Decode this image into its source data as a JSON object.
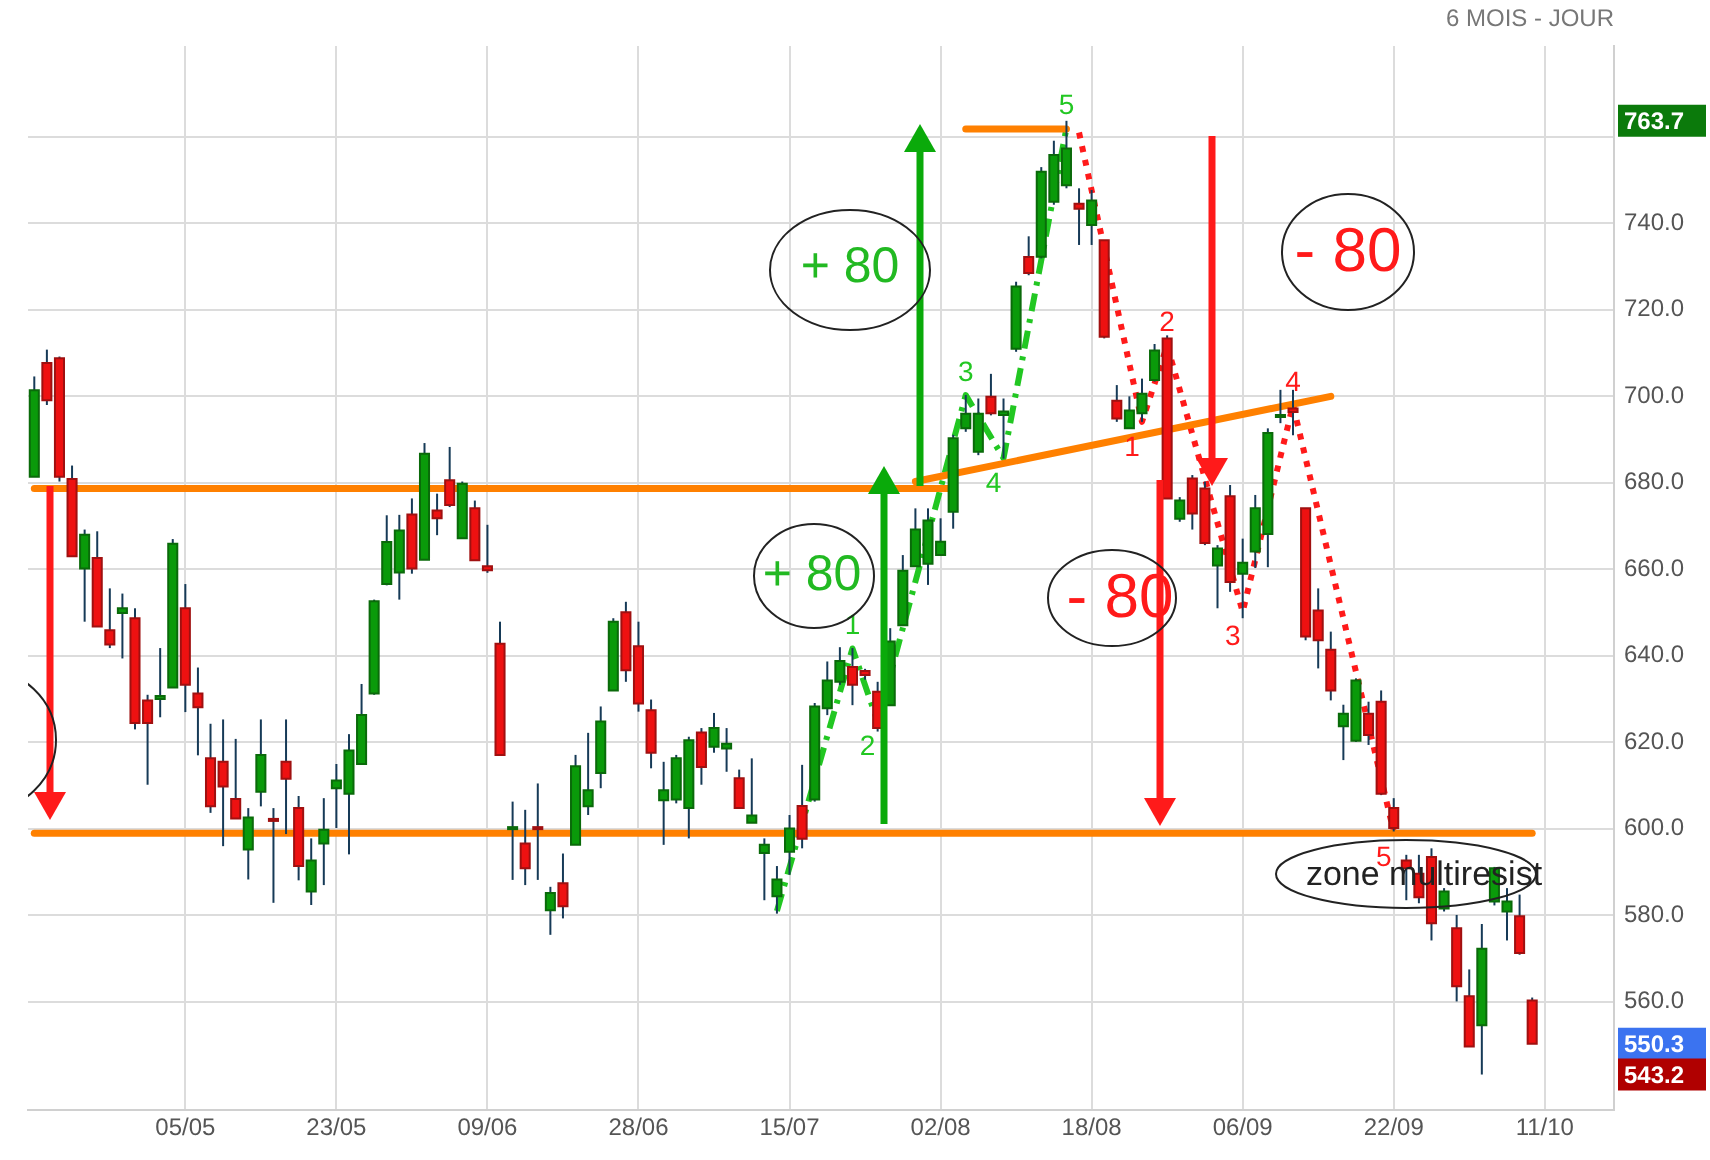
{
  "chart_data": {
    "type": "candlestick",
    "subtitle": "6 MOIS - JOUR",
    "categories": [
      null,
      null,
      null,
      null,
      null,
      null,
      null,
      null,
      null,
      null,
      null,
      null,
      "05/05",
      null,
      null,
      null,
      null,
      null,
      null,
      null,
      null,
      null,
      null,
      null,
      "23/05",
      null,
      null,
      null,
      null,
      null,
      null,
      null,
      null,
      null,
      null,
      null,
      "09/06",
      null,
      null,
      null,
      null,
      null,
      null,
      null,
      null,
      null,
      null,
      null,
      "28/06",
      null,
      null,
      null,
      null,
      null,
      null,
      null,
      null,
      null,
      null,
      null,
      "15/07",
      null,
      null,
      null,
      null,
      null,
      null,
      null,
      null,
      null,
      null,
      null,
      "02/08",
      null,
      null,
      null,
      null,
      null,
      null,
      null,
      null,
      null,
      null,
      null,
      "18/08",
      null,
      null,
      null,
      null,
      null,
      null,
      null,
      null,
      null,
      null,
      null,
      "06/09",
      null,
      null,
      null,
      null,
      null,
      null,
      null,
      null,
      null,
      null,
      null,
      "22/09",
      null,
      null,
      null,
      null,
      null,
      null,
      null,
      null,
      null,
      null,
      null,
      "11/10",
      null,
      null,
      null,
      null,
      null
    ],
    "ohlc": [
      [
        681.4,
        704.6,
        681.4,
        701.4
      ],
      [
        707.7,
        710.8,
        698,
        699.1
      ],
      [
        708.8,
        709.2,
        680.3,
        681.4
      ],
      [
        680.9,
        684,
        663,
        663
      ],
      [
        660.2,
        669.2,
        647.9,
        668
      ],
      [
        662.6,
        668.8,
        646.8,
        646.8
      ],
      [
        645.9,
        655.6,
        641.8,
        642.6
      ],
      [
        649.9,
        654.4,
        639.4,
        651
      ],
      [
        648.7,
        651,
        623,
        624.5
      ],
      [
        629.7,
        631,
        610.2,
        624.5
      ],
      [
        630,
        641.8,
        625.8,
        630.7
      ],
      [
        632.7,
        667,
        632.7,
        665.9
      ],
      [
        651,
        656.6,
        627,
        633.3
      ],
      [
        631.3,
        637.3,
        617,
        628.1
      ],
      [
        616.3,
        624.3,
        603.7,
        605.2
      ],
      [
        615.5,
        625.3,
        596,
        609.8
      ],
      [
        606.9,
        620.8,
        602.4,
        602.4
      ],
      [
        595.2,
        604.8,
        588.3,
        602.6
      ],
      [
        608.6,
        625.3,
        605.2,
        617.1
      ],
      [
        602.3,
        604.8,
        582.9,
        601.9
      ],
      [
        615.5,
        625.3,
        598.8,
        611.6
      ],
      [
        604.8,
        607.6,
        588.1,
        591.4
      ],
      [
        585.5,
        597.8,
        582.4,
        592.7
      ],
      [
        596.6,
        607.1,
        587,
        599.8
      ],
      [
        609.4,
        615,
        600.2,
        611.2
      ],
      [
        608.1,
        621.9,
        594.1,
        618.1
      ],
      [
        615,
        633.5,
        615,
        626.3
      ],
      [
        631.3,
        653,
        631,
        652.6
      ],
      [
        656.6,
        672.5,
        656.3,
        666.3
      ],
      [
        659.3,
        672.6,
        653,
        669
      ],
      [
        672.7,
        676.4,
        659,
        660.2
      ],
      [
        662.2,
        689.2,
        662.2,
        686.7
      ],
      [
        673.6,
        677.5,
        667.9,
        671.8
      ],
      [
        680.6,
        688.3,
        674.4,
        674.9
      ],
      [
        667.2,
        680.3,
        667.2,
        679.8
      ],
      [
        674.1,
        675.9,
        662.1,
        662.1
      ],
      [
        660.7,
        670.3,
        659.2,
        659.8
      ],
      [
        642.8,
        647.9,
        617.1,
        617.1
      ],
      [
        600.2,
        606.3,
        588.2,
        600.4
      ],
      [
        596.6,
        604.4,
        587,
        590.9
      ],
      [
        600.4,
        610.5,
        588.2,
        600.2
      ],
      [
        581.2,
        586.6,
        575.5,
        585.2
      ],
      [
        587.4,
        594.3,
        579.3,
        582.1
      ],
      [
        596.3,
        617.1,
        596.3,
        614.5
      ],
      [
        605.2,
        622.2,
        603.2,
        608.9
      ],
      [
        612.9,
        628.3,
        609.4,
        624.8
      ],
      [
        632,
        648.7,
        632,
        647.9
      ],
      [
        650.1,
        652.5,
        634,
        636.7
      ],
      [
        642.2,
        647.9,
        627.1,
        629
      ],
      [
        627.4,
        629.9,
        614,
        617.6
      ],
      [
        606.6,
        615.5,
        596.3,
        608.9
      ],
      [
        606.8,
        617.1,
        605.9,
        616.3
      ],
      [
        604.8,
        621.3,
        597.8,
        620.5
      ],
      [
        622.3,
        623.3,
        610.2,
        614.3
      ],
      [
        619,
        626.8,
        617.6,
        623.3
      ],
      [
        618.6,
        623.3,
        613.2,
        619.7
      ],
      [
        611.7,
        613.7,
        604.8,
        604.8
      ],
      [
        601.4,
        616.3,
        601.4,
        603.1
      ],
      [
        594.4,
        597.8,
        583.5,
        596.3
      ],
      [
        584.4,
        591.4,
        580.4,
        588.3
      ],
      [
        594.7,
        603.2,
        589.4,
        600.1
      ],
      [
        605.3,
        614.8,
        595.5,
        597.7
      ],
      [
        606.8,
        629.1,
        606.3,
        628.3
      ],
      [
        627.9,
        638.7,
        626.3,
        634.3
      ],
      [
        634,
        642,
        633.3,
        638.8
      ],
      [
        637.4,
        641.8,
        628.6,
        633.3
      ],
      [
        636.5,
        637,
        634.5,
        635.6
      ],
      [
        631.7,
        634,
        622.5,
        623.3
      ],
      [
        628.6,
        646.4,
        628.6,
        643.3
      ],
      [
        647.1,
        663.3,
        647.1,
        659.7
      ],
      [
        660.7,
        674.1,
        660.7,
        669.2
      ],
      [
        661.3,
        674.1,
        656.4,
        671.3
      ],
      [
        663.3,
        671.8,
        663.3,
        666.4
      ],
      [
        673.3,
        691.1,
        669.4,
        690.3
      ],
      [
        692.6,
        700.3,
        691.8,
        696
      ],
      [
        687.2,
        699.5,
        686.4,
        696
      ],
      [
        699.9,
        705.2,
        695.6,
        696.1
      ],
      [
        695.7,
        699.5,
        685.6,
        696.5
      ],
      [
        711,
        726.5,
        710.3,
        725.4
      ],
      [
        732.2,
        737,
        728,
        728.5
      ],
      [
        732.3,
        753,
        731.9,
        751.9
      ],
      [
        745,
        759.1,
        744.3,
        755.8
      ],
      [
        748.8,
        763.7,
        748.1,
        757.3
      ],
      [
        744.5,
        748.1,
        735,
        743.4
      ],
      [
        739.6,
        747.7,
        735,
        745.3
      ],
      [
        736.1,
        736.1,
        713.4,
        713.8
      ],
      [
        699,
        702.6,
        694.1,
        694.9
      ],
      [
        692.6,
        700,
        692.6,
        696.7
      ],
      [
        696.1,
        704.1,
        694.1,
        700.6
      ],
      [
        703.8,
        712.1,
        703.4,
        710.6
      ],
      [
        713.4,
        714.1,
        676.4,
        676.4
      ],
      [
        671.7,
        676.7,
        671,
        675.9
      ],
      [
        681,
        681.8,
        669.2,
        672.9
      ],
      [
        678.7,
        680.3,
        665.6,
        666.1
      ],
      [
        660.9,
        665.6,
        651,
        664.8
      ],
      [
        676.9,
        679.5,
        654.8,
        657.1
      ],
      [
        659,
        667.1,
        648.7,
        661.5
      ],
      [
        664.1,
        677.2,
        660.3,
        674.1
      ],
      [
        668.2,
        692.6,
        660.5,
        691.5
      ],
      [
        695.2,
        701.5,
        693.8,
        695.7
      ],
      [
        697.2,
        701.5,
        691,
        696.4
      ],
      [
        674.1,
        674.1,
        643.6,
        644.5
      ],
      [
        650.5,
        655.6,
        637.1,
        643.6
      ],
      [
        641.4,
        645.6,
        629.7,
        632
      ],
      [
        623.7,
        628.7,
        615.9,
        626.6
      ],
      [
        620.4,
        634.8,
        620.1,
        634.3
      ],
      [
        626.6,
        629.4,
        619.4,
        621.7
      ],
      [
        629.4,
        632,
        607.8,
        608.1
      ],
      [
        604.8,
        607.1,
        599.4,
        600.2
      ],
      [
        592.7,
        594,
        583.5,
        590.9
      ],
      [
        589.6,
        594,
        582.8,
        584.2
      ],
      [
        593.5,
        595.5,
        574.2,
        578.2
      ],
      [
        581.6,
        586.3,
        580.9,
        585.5
      ],
      [
        577,
        580.1,
        560.1,
        563.6
      ],
      [
        561.3,
        567.5,
        549.7,
        549.7
      ],
      [
        554.6,
        578,
        543.2,
        572.3
      ],
      [
        583.2,
        591.2,
        582.3,
        590.9
      ],
      [
        580.9,
        586.3,
        574.2,
        583.2
      ],
      [
        579.8,
        584.8,
        570.9,
        571.3
      ],
      [
        560.3,
        561,
        550.3,
        550.3
      ],
      null,
      null,
      null,
      null,
      null,
      null
    ],
    "series": [
      {
        "type": "line",
        "color": "#ff8000",
        "values": [
          678.7,
          null,
          null,
          null,
          null,
          null,
          null,
          null,
          null,
          null,
          null,
          null,
          null,
          null,
          null,
          null,
          null,
          null,
          null,
          null,
          null,
          null,
          null,
          null,
          null,
          null,
          null,
          null,
          null,
          null,
          null,
          null,
          null,
          null,
          null,
          null,
          null,
          null,
          null,
          null,
          null,
          null,
          null,
          null,
          null,
          null,
          null,
          null,
          null,
          null,
          null,
          null,
          null,
          null,
          null,
          null,
          null,
          null,
          null,
          null,
          null,
          null,
          null,
          null,
          null,
          null,
          null,
          null,
          null,
          null,
          null,
          null,
          null,
          678.7,
          null,
          null,
          null,
          null,
          null,
          null,
          null,
          null,
          null,
          null,
          null,
          null,
          null,
          null,
          null,
          null,
          null,
          null,
          null,
          null,
          null,
          null,
          null,
          null,
          null,
          null,
          null,
          null,
          null,
          null,
          null,
          null,
          null,
          null,
          null,
          null,
          null,
          null,
          null,
          null,
          null,
          null,
          null,
          null,
          null,
          null,
          null,
          null,
          null,
          null,
          null,
          null
        ]
      },
      {
        "type": "line",
        "color": "#ff8000",
        "values": [
          599,
          null,
          null,
          null,
          null,
          null,
          null,
          null,
          null,
          null,
          null,
          null,
          null,
          null,
          null,
          null,
          null,
          null,
          null,
          null,
          null,
          null,
          null,
          null,
          null,
          null,
          null,
          null,
          null,
          null,
          null,
          null,
          null,
          null,
          null,
          null,
          null,
          null,
          null,
          null,
          null,
          null,
          null,
          null,
          null,
          null,
          null,
          null,
          null,
          null,
          null,
          null,
          null,
          null,
          null,
          null,
          null,
          null,
          null,
          null,
          null,
          null,
          null,
          null,
          null,
          null,
          null,
          null,
          null,
          null,
          null,
          null,
          null,
          null,
          null,
          null,
          null,
          null,
          null,
          null,
          null,
          null,
          null,
          null,
          null,
          null,
          null,
          null,
          null,
          null,
          null,
          null,
          null,
          null,
          null,
          null,
          null,
          null,
          null,
          null,
          null,
          null,
          null,
          null,
          null,
          null,
          null,
          null,
          null,
          null,
          null,
          null,
          null,
          null,
          null,
          null,
          null,
          null,
          null,
          599,
          null,
          null,
          null,
          null,
          null,
          null
        ]
      },
      {
        "type": "line",
        "color": "#ff8000",
        "values": [
          null,
          null,
          null,
          null,
          null,
          null,
          null,
          null,
          null,
          null,
          null,
          null,
          null,
          null,
          null,
          null,
          null,
          null,
          null,
          null,
          null,
          null,
          null,
          null,
          null,
          null,
          null,
          null,
          null,
          null,
          null,
          null,
          null,
          null,
          null,
          null,
          null,
          null,
          null,
          null,
          null,
          null,
          null,
          null,
          null,
          null,
          null,
          null,
          null,
          null,
          null,
          null,
          null,
          null,
          null,
          null,
          null,
          null,
          null,
          null,
          null,
          null,
          null,
          null,
          null,
          null,
          null,
          null,
          null,
          null,
          680.3,
          null,
          null,
          null,
          null,
          null,
          null,
          null,
          null,
          null,
          null,
          null,
          null,
          null,
          null,
          null,
          null,
          null,
          null,
          null,
          null,
          null,
          null,
          null,
          null,
          null,
          null,
          null,
          null,
          null,
          null,
          null,
          null,
          700,
          null,
          null,
          null,
          null,
          null,
          null,
          null,
          null,
          null,
          null,
          null,
          null,
          null,
          null,
          null,
          null,
          null,
          null,
          null,
          null,
          null,
          null
        ]
      },
      {
        "type": "line",
        "color": "#ff8000",
        "values": [
          null,
          null,
          null,
          null,
          null,
          null,
          null,
          null,
          null,
          null,
          null,
          null,
          null,
          null,
          null,
          null,
          null,
          null,
          null,
          null,
          null,
          null,
          null,
          null,
          null,
          null,
          null,
          null,
          null,
          null,
          null,
          null,
          null,
          null,
          null,
          null,
          null,
          null,
          null,
          null,
          null,
          null,
          null,
          null,
          null,
          null,
          null,
          null,
          null,
          null,
          null,
          null,
          null,
          null,
          null,
          null,
          null,
          null,
          null,
          null,
          null,
          null,
          null,
          null,
          null,
          null,
          null,
          null,
          null,
          null,
          null,
          null,
          null,
          null,
          761.8,
          null,
          null,
          null,
          null,
          null,
          null,
          null,
          761.8,
          null,
          null,
          null,
          null,
          null,
          null,
          null,
          null,
          null,
          null,
          null,
          null,
          null,
          null,
          null,
          null,
          null,
          null,
          null,
          null,
          null,
          null,
          null,
          null,
          null,
          null,
          null,
          null,
          null,
          null,
          null,
          null,
          null,
          null,
          null,
          null,
          null,
          null,
          null,
          null,
          null,
          null,
          null
        ]
      },
      {
        "type": "line",
        "color": "#22c722",
        "line_style": "dashed",
        "values": [
          null,
          null,
          null,
          null,
          null,
          null,
          null,
          null,
          null,
          null,
          null,
          null,
          null,
          null,
          null,
          null,
          null,
          null,
          null,
          null,
          null,
          null,
          null,
          null,
          null,
          null,
          null,
          null,
          null,
          null,
          null,
          null,
          null,
          null,
          null,
          null,
          null,
          null,
          null,
          null,
          null,
          null,
          null,
          null,
          null,
          null,
          null,
          null,
          null,
          null,
          null,
          null,
          null,
          null,
          null,
          null,
          null,
          null,
          null,
          581,
          null,
          null,
          null,
          null,
          null,
          641.7,
          null,
          624.8,
          null,
          null,
          null,
          null,
          null,
          null,
          700.3,
          null,
          null,
          685.7,
          null,
          null,
          null,
          null,
          762,
          null,
          null,
          null,
          null,
          null,
          null,
          null,
          null,
          null,
          null,
          null,
          null,
          null,
          null,
          null,
          null,
          null,
          null,
          null,
          null,
          null,
          null,
          null,
          null,
          null,
          null,
          null,
          null,
          null,
          null,
          null,
          null,
          null,
          null,
          null,
          null,
          null,
          null,
          null,
          null,
          null,
          null,
          null
        ]
      },
      {
        "type": "line",
        "color": "#ff1a1a",
        "line_style": "dotted",
        "values": [
          null,
          null,
          null,
          null,
          null,
          null,
          null,
          null,
          null,
          null,
          null,
          null,
          null,
          null,
          null,
          null,
          null,
          null,
          null,
          null,
          null,
          null,
          null,
          null,
          null,
          null,
          null,
          null,
          null,
          null,
          null,
          null,
          null,
          null,
          null,
          null,
          null,
          null,
          null,
          null,
          null,
          null,
          null,
          null,
          null,
          null,
          null,
          null,
          null,
          null,
          null,
          null,
          null,
          null,
          null,
          null,
          null,
          null,
          null,
          null,
          null,
          null,
          null,
          null,
          null,
          null,
          null,
          null,
          null,
          null,
          null,
          null,
          null,
          null,
          null,
          null,
          null,
          null,
          null,
          null,
          null,
          null,
          null,
          761,
          null,
          null,
          null,
          null,
          694.1,
          null,
          711.8,
          null,
          null,
          null,
          null,
          null,
          650.2,
          null,
          null,
          null,
          698,
          null,
          null,
          null,
          null,
          null,
          null,
          null,
          599.3,
          null,
          null,
          null,
          null,
          null,
          null,
          null,
          null,
          null,
          null,
          null,
          null,
          null,
          null,
          null,
          null,
          null
        ]
      }
    ],
    "annotations": [
      "+ 80",
      {
        "text": "+ 80",
        "y": 678.7
      },
      "- 80",
      "- 80",
      "zone multiresist",
      "763.7",
      "550.3",
      "543.2",
      {
        "text": "1",
        "y": 641.7
      },
      {
        "text": "2",
        "y": 624.8
      },
      {
        "text": "3",
        "y": 700.3
      },
      {
        "text": "4",
        "y": 685.7
      },
      {
        "text": "5",
        "y": 762
      },
      {
        "text": "1",
        "y": 694.1
      },
      {
        "text": "2",
        "y": 711.8
      },
      {
        "text": "3",
        "y": 650.2
      },
      {
        "text": "4",
        "y": 698
      },
      {
        "text": "5",
        "y": 599.3
      }
    ],
    "ylim": [
      535,
      781
    ],
    "yticks": [
      {
        "value": 560,
        "label": "560.0"
      },
      {
        "value": 580,
        "label": "580.0"
      },
      {
        "value": 600,
        "label": "600.0"
      },
      {
        "value": 620,
        "label": "620.0"
      },
      {
        "value": 640,
        "label": "640.0"
      },
      {
        "value": 660,
        "label": "660.0"
      },
      {
        "value": 680,
        "label": "680.0"
      },
      {
        "value": 700,
        "label": "700.0"
      },
      {
        "value": 720,
        "label": "720.0"
      },
      {
        "value": 740,
        "label": "740.0"
      },
      {
        "value": 760,
        "label": null
      }
    ],
    "grid": true
  }
}
